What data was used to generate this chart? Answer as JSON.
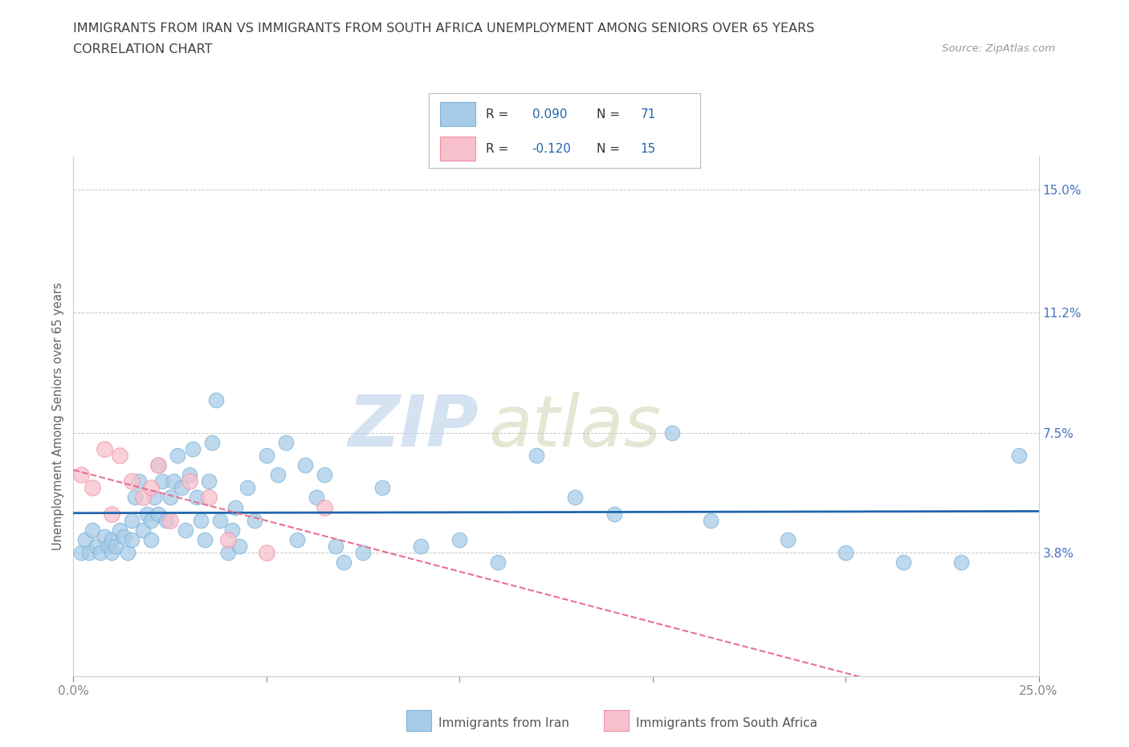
{
  "title_line1": "IMMIGRANTS FROM IRAN VS IMMIGRANTS FROM SOUTH AFRICA UNEMPLOYMENT AMONG SENIORS OVER 65 YEARS",
  "title_line2": "CORRELATION CHART",
  "source": "Source: ZipAtlas.com",
  "ylabel": "Unemployment Among Seniors over 65 years",
  "xlim": [
    0.0,
    0.25
  ],
  "ylim": [
    0.0,
    0.16
  ],
  "xticks": [
    0.0,
    0.05,
    0.1,
    0.15,
    0.2,
    0.25
  ],
  "ytick_positions": [
    0.038,
    0.075,
    0.112,
    0.15
  ],
  "ytick_labels": [
    "3.8%",
    "7.5%",
    "11.2%",
    "15.0%"
  ],
  "iran_color": "#a8cce8",
  "iran_edge": "#7ab3d8",
  "sa_color": "#f8c0cc",
  "sa_edge": "#f090a8",
  "trend_iran_color": "#2166ac",
  "trend_sa_color": "#e87090",
  "legend_label_iran": "Immigrants from Iran",
  "legend_label_sa": "Immigrants from South Africa",
  "watermark_zip": "ZIP",
  "watermark_atlas": "atlas",
  "background_color": "#ffffff",
  "grid_color": "#c8c8c8",
  "title_color": "#404040",
  "axis_label_color": "#606060",
  "tick_label_color": "#4472c4",
  "iran_x": [
    0.002,
    0.003,
    0.004,
    0.005,
    0.006,
    0.007,
    0.008,
    0.009,
    0.01,
    0.01,
    0.011,
    0.012,
    0.013,
    0.014,
    0.015,
    0.015,
    0.016,
    0.017,
    0.018,
    0.019,
    0.02,
    0.02,
    0.021,
    0.022,
    0.022,
    0.023,
    0.024,
    0.025,
    0.026,
    0.027,
    0.028,
    0.029,
    0.03,
    0.031,
    0.032,
    0.033,
    0.034,
    0.035,
    0.036,
    0.037,
    0.038,
    0.04,
    0.041,
    0.042,
    0.043,
    0.045,
    0.047,
    0.05,
    0.053,
    0.055,
    0.058,
    0.06,
    0.063,
    0.065,
    0.068,
    0.07,
    0.075,
    0.08,
    0.09,
    0.1,
    0.11,
    0.12,
    0.13,
    0.14,
    0.155,
    0.165,
    0.185,
    0.2,
    0.215,
    0.23,
    0.245
  ],
  "iran_y": [
    0.038,
    0.042,
    0.038,
    0.045,
    0.04,
    0.038,
    0.043,
    0.04,
    0.042,
    0.038,
    0.04,
    0.045,
    0.043,
    0.038,
    0.042,
    0.048,
    0.055,
    0.06,
    0.045,
    0.05,
    0.048,
    0.042,
    0.055,
    0.05,
    0.065,
    0.06,
    0.048,
    0.055,
    0.06,
    0.068,
    0.058,
    0.045,
    0.062,
    0.07,
    0.055,
    0.048,
    0.042,
    0.06,
    0.072,
    0.085,
    0.048,
    0.038,
    0.045,
    0.052,
    0.04,
    0.058,
    0.048,
    0.068,
    0.062,
    0.072,
    0.042,
    0.065,
    0.055,
    0.062,
    0.04,
    0.035,
    0.038,
    0.058,
    0.04,
    0.042,
    0.035,
    0.068,
    0.055,
    0.05,
    0.075,
    0.048,
    0.042,
    0.038,
    0.035,
    0.035,
    0.068
  ],
  "sa_x": [
    0.002,
    0.005,
    0.008,
    0.01,
    0.012,
    0.015,
    0.018,
    0.02,
    0.022,
    0.025,
    0.03,
    0.035,
    0.04,
    0.05,
    0.065
  ],
  "sa_y": [
    0.062,
    0.058,
    0.07,
    0.05,
    0.068,
    0.06,
    0.055,
    0.058,
    0.065,
    0.048,
    0.06,
    0.055,
    0.042,
    0.038,
    0.052
  ]
}
